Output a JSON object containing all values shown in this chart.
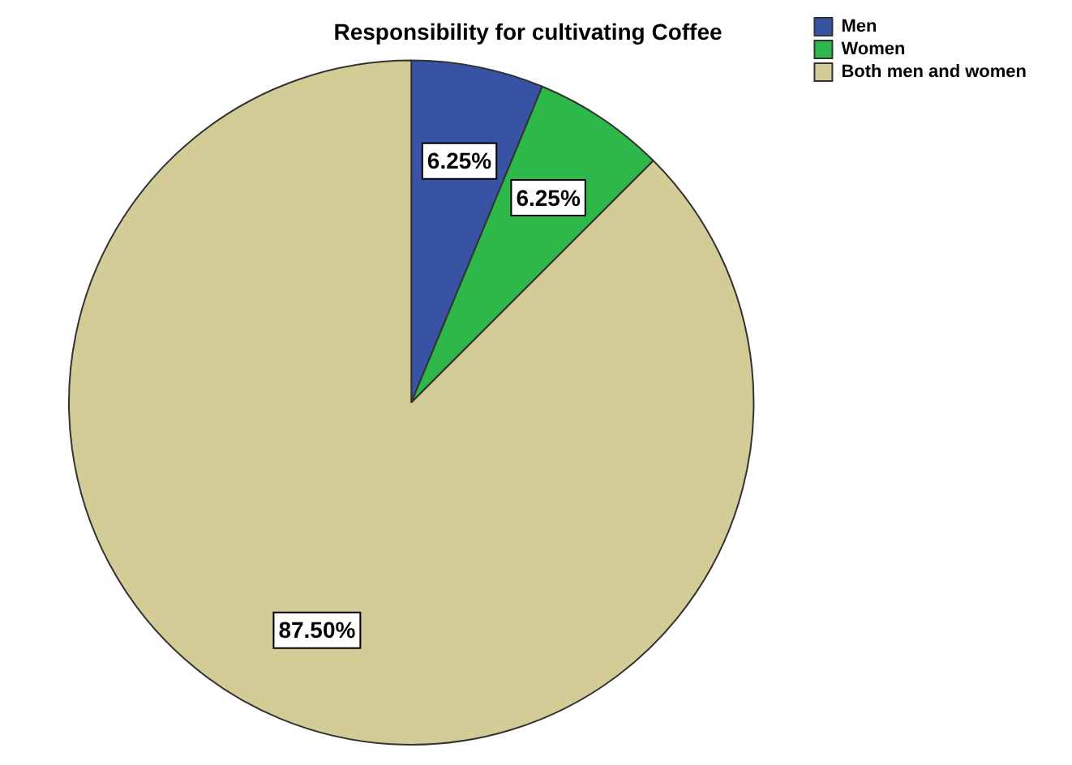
{
  "chart_data": {
    "type": "pie",
    "title": "Responsibility for cultivating Coffee",
    "categories": [
      "Men",
      "Women",
      "Both men and women"
    ],
    "values": [
      6.25,
      6.25,
      87.5
    ],
    "colors": [
      "#3953a4",
      "#2fb84a",
      "#d4cc96"
    ],
    "value_labels": [
      "6.25%",
      "6.25%",
      "87.50%"
    ],
    "legend": "top right"
  }
}
